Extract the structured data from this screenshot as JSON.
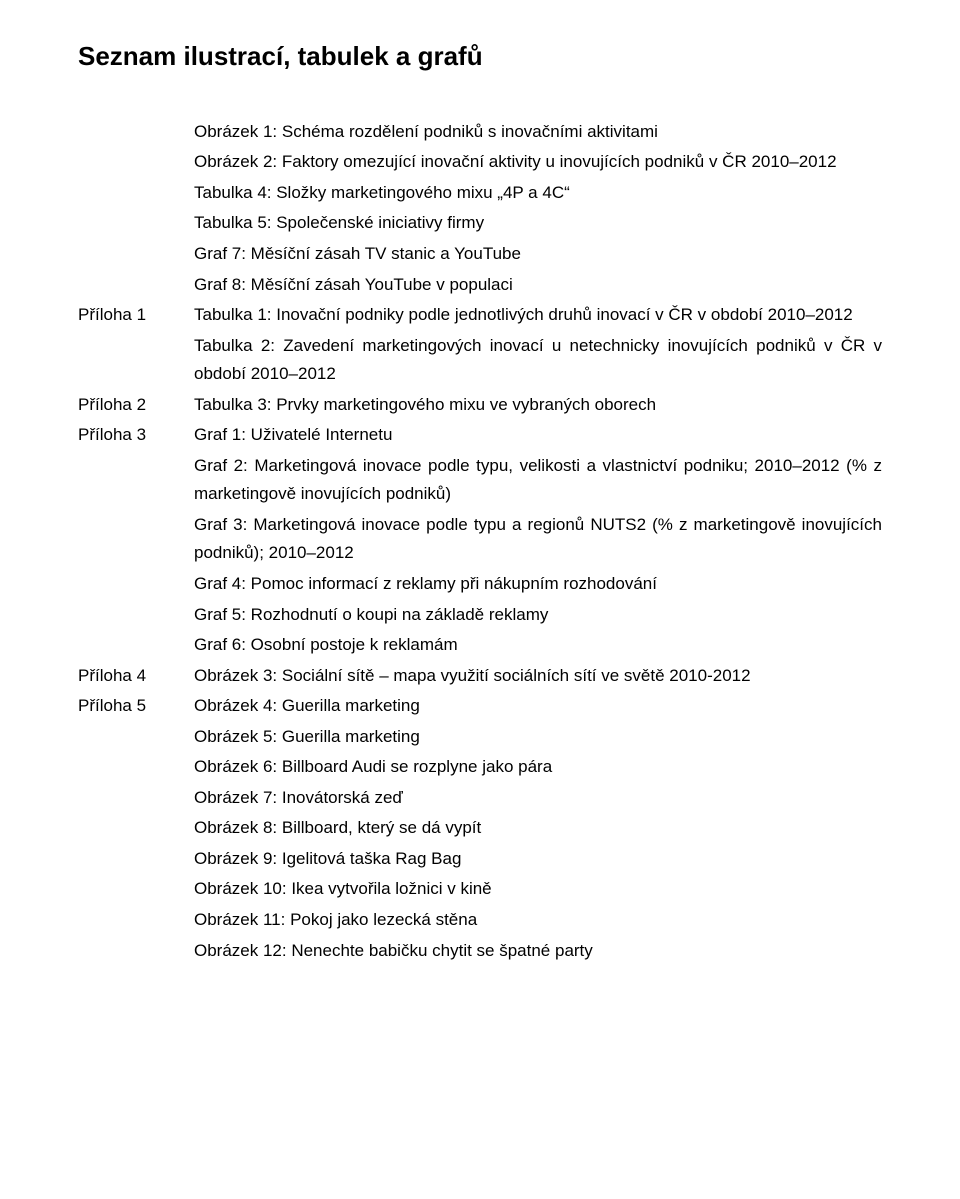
{
  "heading": "Seznam ilustrací, tabulek a grafů",
  "rows": [
    {
      "label": "",
      "text": "Obrázek 1: Schéma rozdělení podniků s inovačními aktivitami"
    },
    {
      "label": "",
      "text": "Obrázek 2: Faktory omezující inovační aktivity u inovujících podniků v ČR 2010–2012"
    },
    {
      "label": "",
      "text": "Tabulka 4: Složky marketingového mixu „4P a 4C“"
    },
    {
      "label": "",
      "text": "Tabulka 5: Společenské iniciativy firmy"
    },
    {
      "label": "",
      "text": "Graf 7: Měsíční zásah TV stanic a YouTube"
    },
    {
      "label": "",
      "text": "Graf 8: Měsíční zásah YouTube v populaci"
    },
    {
      "label": "Příloha 1",
      "text": "Tabulka 1: Inovační podniky podle jednotlivých druhů inovací v ČR v období 2010–2012"
    },
    {
      "label": "",
      "text": "Tabulka 2: Zavedení marketingových inovací u netechnicky inovujících podniků v ČR v období 2010–2012"
    },
    {
      "label": "Příloha 2",
      "text": "Tabulka 3: Prvky marketingového mixu ve vybraných oborech"
    },
    {
      "label": "Příloha 3",
      "text": "Graf 1: Uživatelé Internetu"
    },
    {
      "label": "",
      "text": "Graf 2: Marketingová inovace podle typu, velikosti a vlastnictví podniku; 2010–2012 (% z marketingově inovujících podniků)"
    },
    {
      "label": "",
      "text": "Graf 3: Marketingová inovace podle typu a regionů NUTS2 (% z marketingově inovujících podniků); 2010–2012"
    },
    {
      "label": "",
      "text": "Graf 4: Pomoc informací z reklamy při nákupním rozhodování"
    },
    {
      "label": "",
      "text": "Graf 5: Rozhodnutí o koupi na základě reklamy"
    },
    {
      "label": "",
      "text": "Graf 6: Osobní postoje k reklamám"
    },
    {
      "label": "Příloha 4",
      "text": "Obrázek 3: Sociální sítě – mapa využití sociálních sítí ve světě 2010-2012"
    },
    {
      "label": "Příloha 5",
      "text": "Obrázek 4: Guerilla marketing"
    },
    {
      "label": "",
      "text": "Obrázek 5: Guerilla marketing"
    },
    {
      "label": "",
      "text": "Obrázek 6: Billboard Audi se rozplyne jako pára"
    },
    {
      "label": "",
      "text": "Obrázek 7: Inovátorská zeď"
    },
    {
      "label": "",
      "text": "Obrázek 8: Billboard, který se dá vypít"
    },
    {
      "label": "",
      "text": "Obrázek 9: Igelitová taška Rag Bag"
    },
    {
      "label": "",
      "text": "Obrázek 10: Ikea vytvořila ložnici v kině"
    },
    {
      "label": "",
      "text": "Obrázek 11: Pokoj jako lezecká stěna"
    },
    {
      "label": "",
      "text": "Obrázek 12: Nenechte babičku chytit se špatné party"
    }
  ]
}
